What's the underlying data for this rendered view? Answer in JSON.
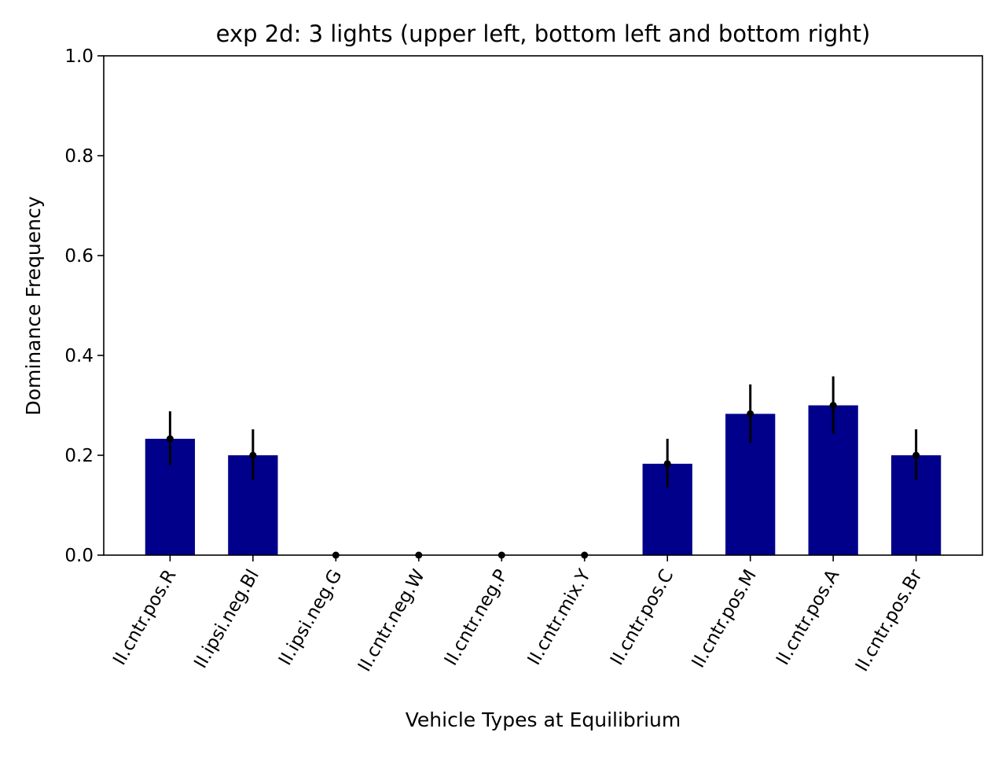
{
  "chart_data": {
    "type": "bar",
    "title": "exp 2d: 3 lights (upper left, bottom left and bottom right)",
    "xlabel": "Vehicle Types at Equilibrium",
    "ylabel": "Dominance Frequency",
    "ylim": [
      0,
      1.0
    ],
    "yticks": [
      "0.0",
      "0.2",
      "0.4",
      "0.6",
      "0.8",
      "1.0"
    ],
    "categories": [
      "II.cntr.pos.R",
      "II.ipsi.neg.Bl",
      "II.ipsi.neg.G",
      "II.cntr.neg.W",
      "II.cntr.neg.P",
      "II.cntr.mix.Y",
      "II.cntr.pos.C",
      "II.cntr.pos.M",
      "II.cntr.pos.A",
      "II.cntr.pos.Br"
    ],
    "values": [
      0.233,
      0.2,
      0.0,
      0.0,
      0.0,
      0.0,
      0.183,
      0.283,
      0.3,
      0.2
    ],
    "error_low": [
      0.18,
      0.15,
      0.0,
      0.0,
      0.0,
      0.0,
      0.135,
      0.225,
      0.243,
      0.15
    ],
    "error_high": [
      0.288,
      0.252,
      0.0,
      0.0,
      0.0,
      0.0,
      0.233,
      0.342,
      0.358,
      0.252
    ],
    "bar_color": "#00008b",
    "error_color": "#000000",
    "grid": false,
    "legend": "none"
  }
}
